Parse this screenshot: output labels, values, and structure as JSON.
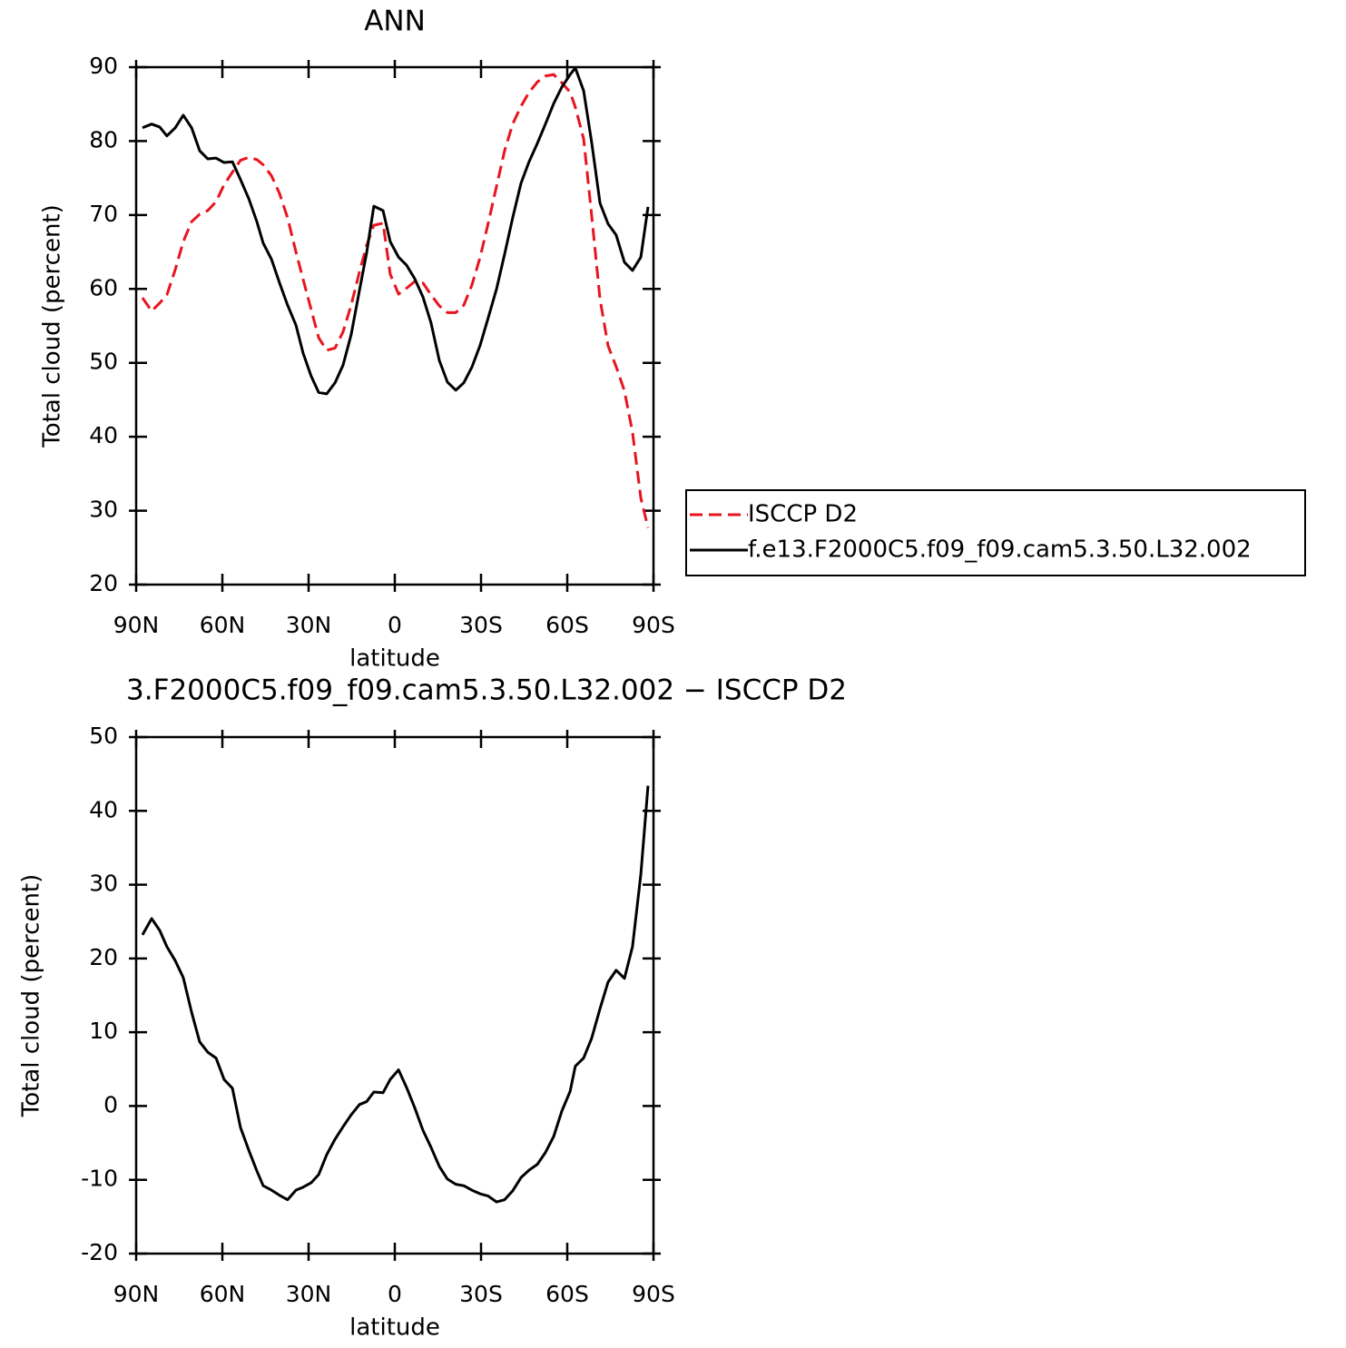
{
  "chart_data": [
    {
      "type": "line",
      "title": "ANN",
      "xlabel": "latitude",
      "ylabel": "Total cloud (percent)",
      "x": [
        87.8,
        84.6,
        81.8,
        79.3,
        76.4,
        73.6,
        70.7,
        67.9,
        65.1,
        62.2,
        59.4,
        56.5,
        53.7,
        50.8,
        48.0,
        45.8,
        42.9,
        40.1,
        37.3,
        34.4,
        31.9,
        29.1,
        26.5,
        23.7,
        20.8,
        18.0,
        15.2,
        12.3,
        9.8,
        7.3,
        4.1,
        1.6,
        -1.3,
        -4.1,
        -6.9,
        -9.8,
        -12.6,
        -15.5,
        -18.3,
        -21.2,
        -24.0,
        -26.8,
        -29.7,
        -32.5,
        -35.4,
        -38.2,
        -41.0,
        -43.9,
        -46.7,
        -49.6,
        -52.4,
        -55.3,
        -58.1,
        -61.0,
        -62.8,
        -65.7,
        -68.5,
        -71.4,
        -74.2,
        -77.0,
        -79.9,
        -82.7,
        -85.6,
        -88.1
      ],
      "series": [
        {
          "name": "ISCCP D2",
          "color": "#e8141e",
          "line_style": "dashed",
          "values": [
            58.8,
            57.0,
            58.1,
            59.2,
            62.6,
            66.4,
            69.1,
            70.1,
            70.6,
            71.8,
            74.1,
            75.8,
            77.4,
            77.8,
            77.5,
            76.8,
            75.3,
            72.9,
            69.6,
            65.0,
            61.3,
            57.2,
            53.4,
            51.7,
            52.0,
            54.2,
            57.8,
            62.3,
            65.9,
            68.6,
            68.9,
            62.0,
            59.3,
            60.1,
            61.0,
            60.8,
            59.2,
            57.7,
            56.8,
            56.8,
            57.8,
            60.5,
            64.3,
            68.9,
            73.9,
            78.7,
            82.3,
            84.7,
            86.6,
            88.0,
            88.8,
            89.0,
            87.9,
            86.6,
            84.6,
            80.3,
            69.9,
            58.6,
            52.3,
            49.5,
            46.2,
            40.6,
            31.7,
            27.7
          ]
        },
        {
          "name": "f.e13.F2000C5.f09_f09.cam5.3.50.L32.002",
          "color": "#000000",
          "line_style": "solid",
          "values": [
            81.8,
            82.3,
            81.9,
            80.7,
            81.8,
            83.5,
            81.8,
            78.7,
            77.6,
            77.7,
            77.1,
            77.2,
            74.8,
            72.2,
            69.1,
            66.2,
            64.0,
            60.8,
            57.8,
            55.1,
            51.3,
            48.2,
            46.0,
            45.8,
            47.3,
            49.7,
            53.8,
            59.8,
            64.9,
            71.2,
            70.6,
            66.4,
            64.3,
            63.2,
            61.4,
            58.9,
            55.4,
            50.3,
            47.4,
            46.3,
            47.3,
            49.4,
            52.4,
            56.1,
            60.0,
            64.7,
            69.6,
            74.3,
            77.2,
            79.7,
            82.3,
            85.1,
            87.3,
            89.0,
            89.9,
            86.8,
            79.8,
            71.6,
            68.8,
            67.3,
            63.6,
            62.5,
            64.3,
            71.1
          ]
        }
      ],
      "xlim": [
        90,
        -90
      ],
      "xticks": [
        {
          "value": 90,
          "label": "90N"
        },
        {
          "value": 60,
          "label": "60N"
        },
        {
          "value": 30,
          "label": "30N"
        },
        0,
        {
          "value": -30,
          "label": "30S"
        },
        {
          "value": -60,
          "label": "60S"
        },
        {
          "value": -90,
          "label": "90S"
        }
      ],
      "ylim": [
        20,
        90
      ],
      "yticks": [
        20,
        30,
        40,
        50,
        60,
        70,
        80,
        90
      ],
      "legend": "right"
    },
    {
      "type": "line",
      "title": "3.F2000C5.f09_f09.cam5.3.50.L32.002 − ISCCP D2",
      "xlabel": "latitude",
      "ylabel": "Total cloud (percent)",
      "x": [
        87.8,
        84.6,
        81.8,
        79.3,
        76.4,
        73.6,
        70.7,
        67.9,
        65.1,
        62.2,
        59.4,
        56.5,
        53.7,
        50.8,
        48.0,
        45.8,
        42.9,
        40.1,
        37.3,
        34.4,
        31.9,
        29.1,
        26.5,
        23.7,
        20.8,
        18.0,
        15.2,
        12.3,
        9.8,
        7.3,
        4.1,
        1.6,
        -1.3,
        -4.1,
        -6.9,
        -9.8,
        -12.6,
        -15.5,
        -18.3,
        -21.2,
        -24.0,
        -26.8,
        -29.7,
        -32.5,
        -35.4,
        -38.2,
        -41.0,
        -43.9,
        -46.7,
        -49.6,
        -52.4,
        -55.3,
        -58.1,
        -61.0,
        -62.8,
        -65.7,
        -68.5,
        -71.4,
        -74.2,
        -77.0,
        -79.9,
        -82.7,
        -85.6,
        -88.1
      ],
      "series": [
        {
          "color": "#000000",
          "line_style": "solid",
          "values": [
            23.2,
            25.4,
            23.8,
            21.6,
            19.7,
            17.4,
            12.7,
            8.7,
            7.3,
            6.5,
            3.6,
            2.4,
            -2.9,
            -6.0,
            -8.8,
            -10.8,
            -11.4,
            -12.1,
            -12.7,
            -11.4,
            -11.0,
            -10.4,
            -9.3,
            -6.6,
            -4.5,
            -2.8,
            -1.2,
            0.2,
            0.6,
            1.9,
            1.8,
            3.6,
            4.9,
            2.5,
            -0.2,
            -3.3,
            -5.6,
            -8.2,
            -9.9,
            -10.6,
            -10.8,
            -11.4,
            -11.9,
            -12.2,
            -13.0,
            -12.7,
            -11.5,
            -9.7,
            -8.7,
            -7.9,
            -6.3,
            -4.1,
            -0.7,
            2.0,
            5.4,
            6.5,
            9.2,
            13.2,
            16.8,
            18.4,
            17.3,
            21.6,
            31.4,
            43.4
          ]
        }
      ],
      "xlim": [
        90,
        -90
      ],
      "xticks": [
        {
          "value": 90,
          "label": "90N"
        },
        {
          "value": 60,
          "label": "60N"
        },
        {
          "value": 30,
          "label": "30N"
        },
        0,
        {
          "value": -30,
          "label": "30S"
        },
        {
          "value": -60,
          "label": "60S"
        },
        {
          "value": -90,
          "label": "90S"
        }
      ],
      "ylim": [
        -20,
        50
      ],
      "yticks": [
        -20,
        -10,
        0,
        10,
        20,
        30,
        40,
        50
      ]
    }
  ]
}
